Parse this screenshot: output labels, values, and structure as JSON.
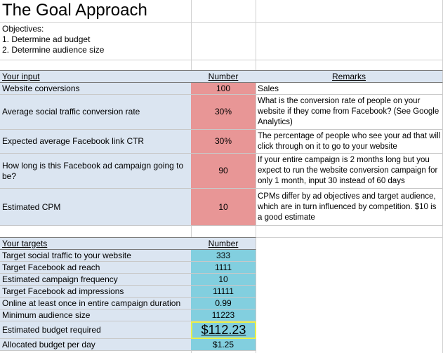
{
  "title": "The Goal Approach",
  "objectives": {
    "heading": "Objectives:",
    "items": [
      "1. Determine ad budget",
      "2. Determine audience size"
    ]
  },
  "input_table": {
    "headers": {
      "input": "Your input",
      "number": "Number",
      "remarks": "Remarks"
    },
    "rows": [
      {
        "label": "Website conversions",
        "value": "100",
        "remark": "Sales"
      },
      {
        "label": "Average social traffic conversion rate",
        "value": "30%",
        "remark": "What is the conversion rate of people on your website if they come from Facebook? (See Google Analytics)"
      },
      {
        "label": "Expected average Facebook link CTR",
        "value": "30%",
        "remark": "The percentage of people who see your ad that will click through on it to go to your website"
      },
      {
        "label": "How long is this Facebook ad campaign going to be?",
        "value": "90",
        "remark": "If your entire campaign is 2 months long but you expect to run the website conversion campaign for only 1 month, input 30 instead of 60 days"
      },
      {
        "label": "Estimated CPM",
        "value": "10",
        "remark": "CPMs differ by ad objectives and target audience, which are in turn influenced by competition. $10 is a good estimate"
      }
    ]
  },
  "targets_table": {
    "headers": {
      "targets": "Your targets",
      "number": "Number"
    },
    "rows": [
      {
        "label": "Target social traffic to your website",
        "value": "333"
      },
      {
        "label": "Target Facebook ad reach",
        "value": "1111"
      },
      {
        "label": "Estimated campaign frequency",
        "value": "10"
      },
      {
        "label": "Target Facebook ad impressions",
        "value": "11111"
      },
      {
        "label": "Online at least once in entire campaign duration",
        "value": "0.99"
      },
      {
        "label": "Minimum audience size",
        "value": "11223"
      },
      {
        "label": "Estimated budget required",
        "value": "$112.23"
      },
      {
        "label": "Allocated budget per day",
        "value": "$1.25"
      }
    ]
  },
  "colors": {
    "input_bg": "#dbe5f1",
    "value_bg": "#e89696",
    "target_value_bg": "#82cfdf",
    "highlight_border": "#e8f04a"
  }
}
